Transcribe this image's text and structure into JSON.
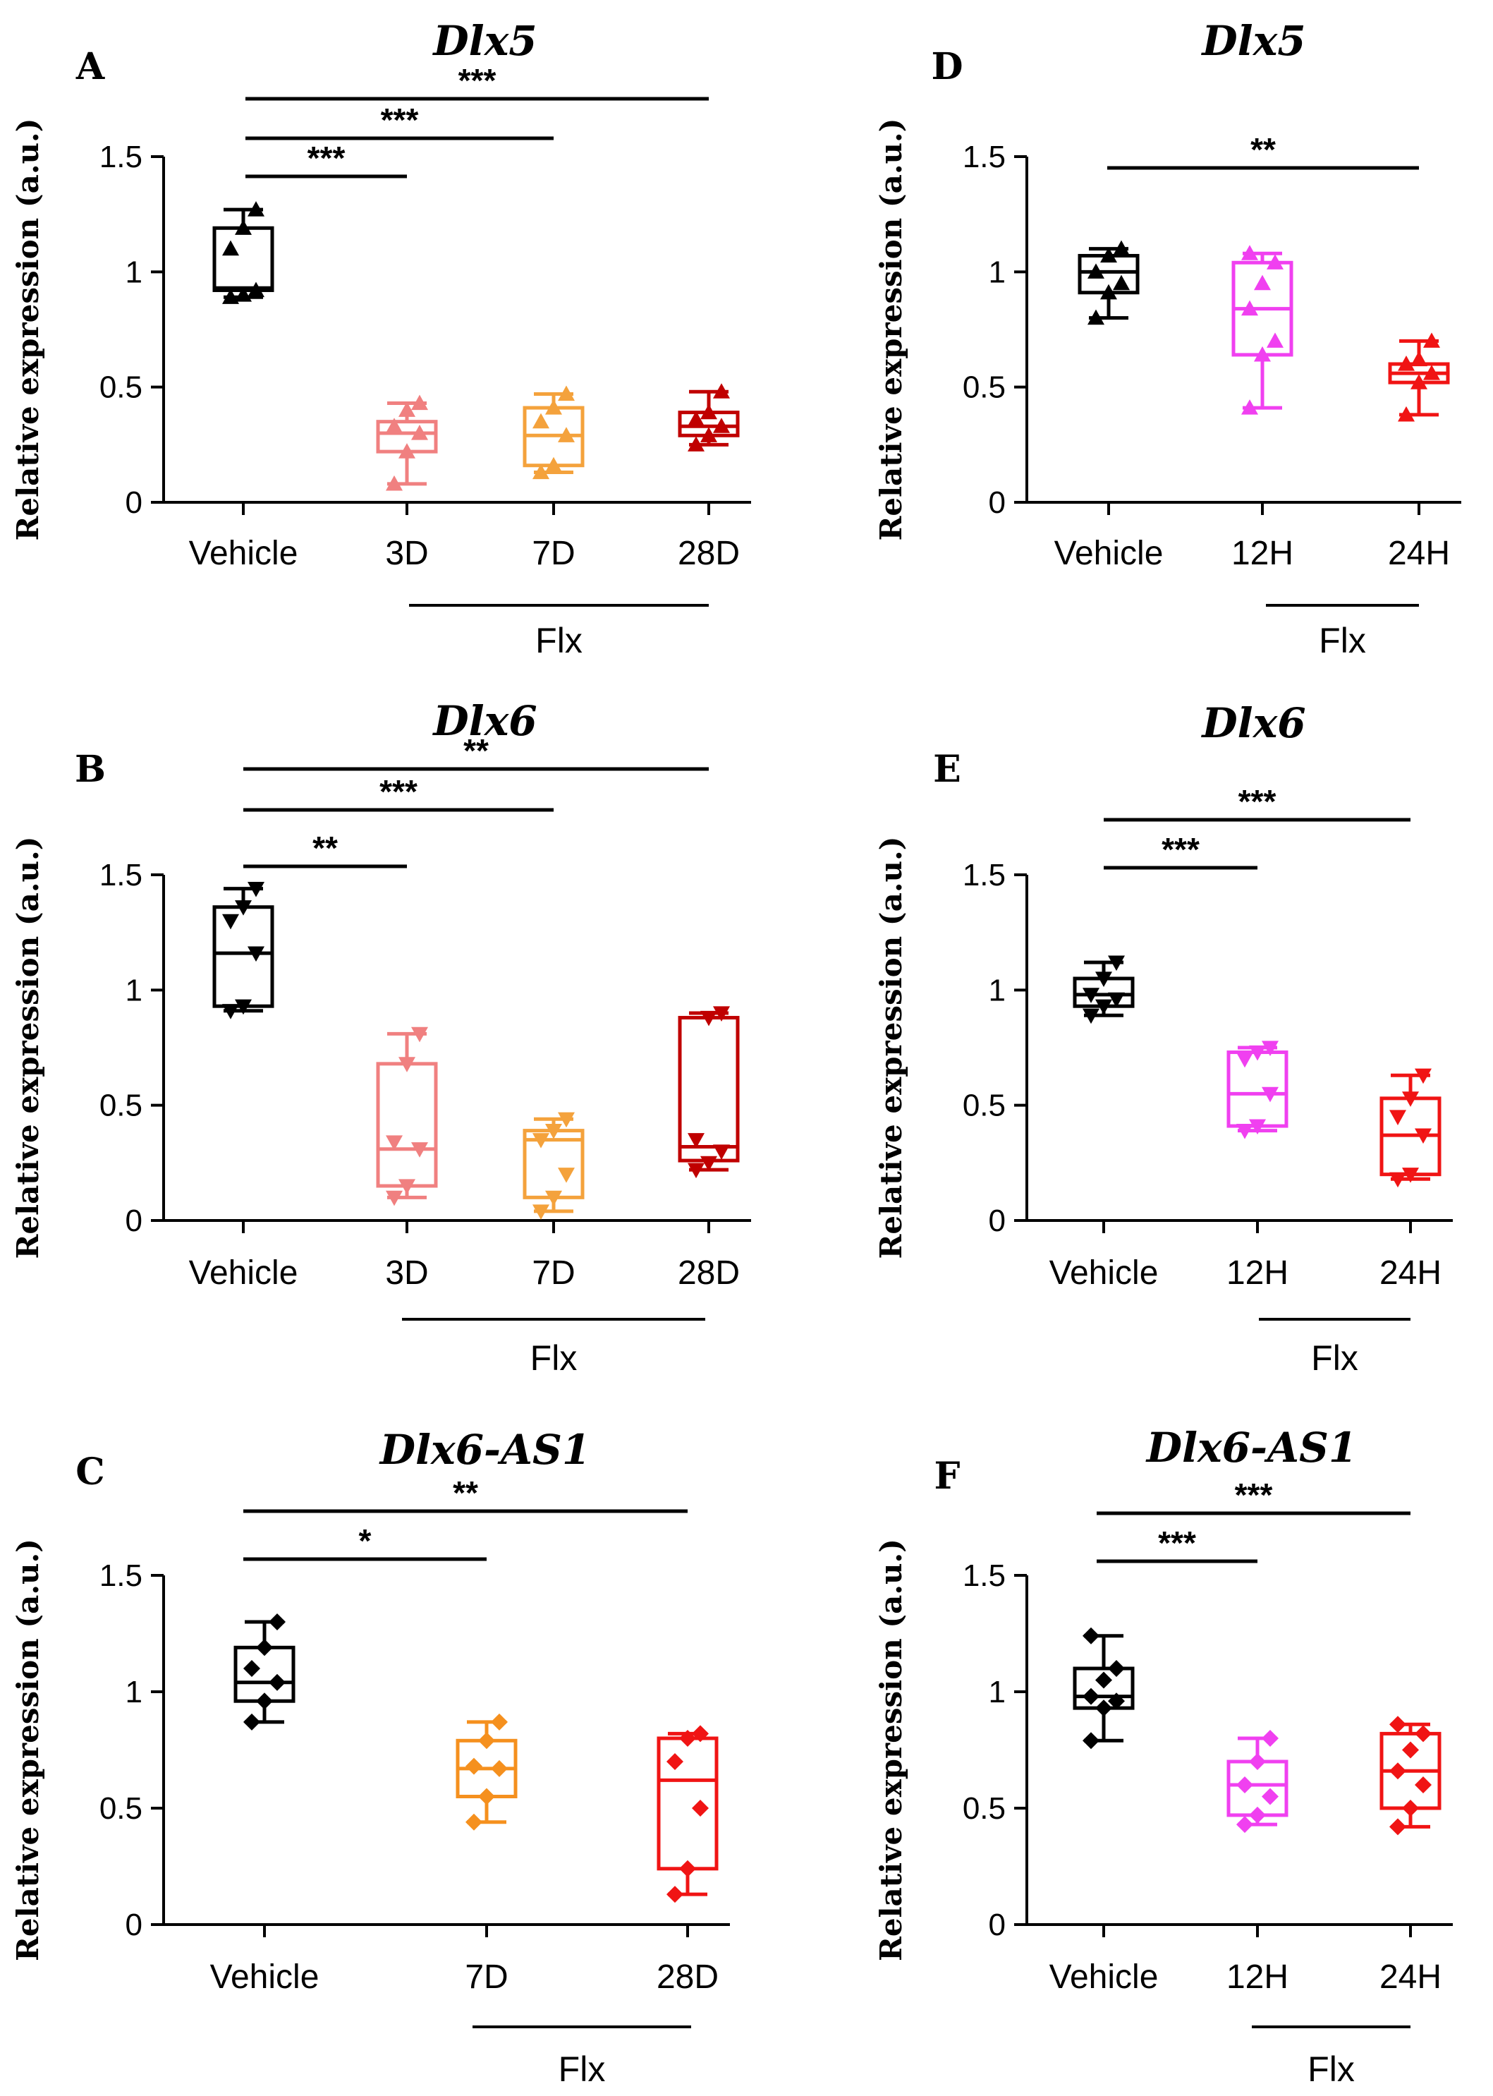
{
  "chart_data": [
    {
      "id": "A",
      "type": "box",
      "title": "Dlx5",
      "ylabel": "Relative expression (a.u.)",
      "yticks": [
        "0",
        "0.5",
        "1",
        "1.5"
      ],
      "ylim": [
        0,
        1.5
      ],
      "categories": [
        "Vehicle",
        "3D",
        "7D",
        "28D"
      ],
      "group_label": "Flx",
      "group_span": [
        1,
        3
      ],
      "marker": "up",
      "boxes": [
        {
          "color": "#000000",
          "min": 0.89,
          "q1": 0.92,
          "median": 0.93,
          "q3": 1.19,
          "max": 1.27,
          "points": [
            0.89,
            0.9,
            0.92,
            1.1,
            1.19,
            1.27
          ]
        },
        {
          "color": "#F08080",
          "min": 0.08,
          "q1": 0.22,
          "median": 0.3,
          "q3": 0.35,
          "max": 0.43,
          "points": [
            0.08,
            0.22,
            0.3,
            0.33,
            0.4,
            0.43
          ]
        },
        {
          "color": "#F4A23C",
          "min": 0.13,
          "q1": 0.16,
          "median": 0.29,
          "q3": 0.41,
          "max": 0.47,
          "points": [
            0.13,
            0.16,
            0.29,
            0.35,
            0.41,
            0.47
          ]
        },
        {
          "color": "#C00000",
          "min": 0.25,
          "q1": 0.29,
          "median": 0.33,
          "q3": 0.39,
          "max": 0.48,
          "points": [
            0.25,
            0.29,
            0.33,
            0.36,
            0.39,
            0.48
          ]
        }
      ],
      "significance": [
        {
          "from": 0,
          "to": 1,
          "label": "***"
        },
        {
          "from": 0,
          "to": 2,
          "label": "***"
        },
        {
          "from": 0,
          "to": 3,
          "label": "***"
        }
      ]
    },
    {
      "id": "B",
      "type": "box",
      "title": "Dlx6",
      "ylabel": "Relative expression (a.u.)",
      "yticks": [
        "0",
        "0.5",
        "1",
        "1.5"
      ],
      "ylim": [
        0,
        1.5
      ],
      "categories": [
        "Vehicle",
        "3D",
        "7D",
        "28D"
      ],
      "group_label": "Flx",
      "group_span": [
        1,
        3
      ],
      "marker": "down",
      "boxes": [
        {
          "color": "#000000",
          "min": 0.91,
          "q1": 0.93,
          "median": 1.16,
          "q3": 1.36,
          "max": 1.44,
          "points": [
            0.91,
            0.93,
            1.16,
            1.3,
            1.36,
            1.44
          ]
        },
        {
          "color": "#F08080",
          "min": 0.1,
          "q1": 0.15,
          "median": 0.31,
          "q3": 0.68,
          "max": 0.81,
          "points": [
            0.1,
            0.15,
            0.31,
            0.34,
            0.68,
            0.81
          ]
        },
        {
          "color": "#F4A23C",
          "min": 0.04,
          "q1": 0.1,
          "median": 0.35,
          "q3": 0.39,
          "max": 0.44,
          "points": [
            0.04,
            0.1,
            0.2,
            0.35,
            0.39,
            0.44
          ]
        },
        {
          "color": "#C00000",
          "min": 0.22,
          "q1": 0.26,
          "median": 0.32,
          "q3": 0.88,
          "max": 0.9,
          "points": [
            0.22,
            0.25,
            0.3,
            0.35,
            0.88,
            0.9
          ]
        }
      ],
      "significance": [
        {
          "from": 0,
          "to": 1,
          "label": "**"
        },
        {
          "from": 0,
          "to": 2,
          "label": "***"
        },
        {
          "from": 0,
          "to": 3,
          "label": "**"
        }
      ]
    },
    {
      "id": "C",
      "type": "box",
      "title": "Dlx6-AS1",
      "ylabel": "Relative expression (a.u.)",
      "yticks": [
        "0",
        "0.5",
        "1",
        "1.5"
      ],
      "ylim": [
        0,
        1.5
      ],
      "categories": [
        "Vehicle",
        "7D",
        "28D"
      ],
      "group_label": "Flx",
      "group_span": [
        1,
        2
      ],
      "marker": "diamond",
      "boxes": [
        {
          "color": "#000000",
          "min": 0.87,
          "q1": 0.96,
          "median": 1.04,
          "q3": 1.19,
          "max": 1.3,
          "points": [
            0.87,
            0.96,
            1.04,
            1.1,
            1.19,
            1.3
          ]
        },
        {
          "color": "#F5901E",
          "min": 0.44,
          "q1": 0.55,
          "median": 0.67,
          "q3": 0.79,
          "max": 0.87,
          "points": [
            0.44,
            0.55,
            0.67,
            0.68,
            0.79,
            0.87
          ]
        },
        {
          "color": "#F01414",
          "min": 0.13,
          "q1": 0.24,
          "median": 0.62,
          "q3": 0.8,
          "max": 0.82,
          "points": [
            0.13,
            0.24,
            0.5,
            0.7,
            0.8,
            0.82
          ]
        }
      ],
      "significance": [
        {
          "from": 0,
          "to": 1,
          "label": "*"
        },
        {
          "from": 0,
          "to": 2,
          "label": "**"
        }
      ]
    },
    {
      "id": "D",
      "type": "box",
      "title": "Dlx5",
      "ylabel": "Relative expression (a.u.)",
      "yticks": [
        "0",
        "0.5",
        "1",
        "1.5"
      ],
      "ylim": [
        0,
        1.5
      ],
      "categories": [
        "Vehicle",
        "12H",
        "24H"
      ],
      "group_label": "Flx",
      "group_span": [
        1,
        2
      ],
      "marker": "up",
      "boxes": [
        {
          "color": "#000000",
          "min": 0.8,
          "q1": 0.91,
          "median": 1.0,
          "q3": 1.07,
          "max": 1.1,
          "points": [
            0.8,
            0.91,
            0.95,
            1.0,
            1.07,
            1.1
          ]
        },
        {
          "color": "#F040F0",
          "min": 0.41,
          "q1": 0.64,
          "median": 0.84,
          "q3": 1.04,
          "max": 1.08,
          "points": [
            0.41,
            0.64,
            0.7,
            0.84,
            0.95,
            1.04,
            1.08
          ]
        },
        {
          "color": "#F01414",
          "min": 0.38,
          "q1": 0.52,
          "median": 0.56,
          "q3": 0.6,
          "max": 0.7,
          "points": [
            0.38,
            0.52,
            0.56,
            0.6,
            0.62,
            0.7
          ]
        }
      ],
      "significance": [
        {
          "from": 0,
          "to": 2,
          "label": "**"
        }
      ]
    },
    {
      "id": "E",
      "type": "box",
      "title": "Dlx6",
      "ylabel": "Relative expression (a.u.)",
      "yticks": [
        "0",
        "0.5",
        "1",
        "1.5"
      ],
      "ylim": [
        0,
        1.5
      ],
      "categories": [
        "Vehicle",
        "12H",
        "24H"
      ],
      "group_label": "Flx",
      "group_span": [
        1,
        2
      ],
      "marker": "down",
      "boxes": [
        {
          "color": "#000000",
          "min": 0.89,
          "q1": 0.93,
          "median": 0.98,
          "q3": 1.05,
          "max": 1.12,
          "points": [
            0.89,
            0.93,
            0.96,
            0.98,
            1.05,
            1.12
          ]
        },
        {
          "color": "#F040F0",
          "min": 0.39,
          "q1": 0.41,
          "median": 0.55,
          "q3": 0.73,
          "max": 0.75,
          "points": [
            0.39,
            0.41,
            0.55,
            0.7,
            0.73,
            0.75
          ]
        },
        {
          "color": "#F01414",
          "min": 0.18,
          "q1": 0.2,
          "median": 0.37,
          "q3": 0.53,
          "max": 0.63,
          "points": [
            0.18,
            0.2,
            0.37,
            0.45,
            0.53,
            0.63
          ]
        }
      ],
      "significance": [
        {
          "from": 0,
          "to": 1,
          "label": "***"
        },
        {
          "from": 0,
          "to": 2,
          "label": "***"
        }
      ]
    },
    {
      "id": "F",
      "type": "box",
      "title": "Dlx6-AS1",
      "ylabel": "Relative expression (a.u.)",
      "yticks": [
        "0",
        "0.5",
        "1",
        "1.5"
      ],
      "ylim": [
        0,
        1.5
      ],
      "categories": [
        "Vehicle",
        "12H",
        "24H"
      ],
      "group_label": "Flx",
      "group_span": [
        1,
        2
      ],
      "marker": "diamond",
      "boxes": [
        {
          "color": "#000000",
          "min": 0.79,
          "q1": 0.93,
          "median": 0.98,
          "q3": 1.1,
          "max": 1.24,
          "points": [
            0.79,
            0.93,
            0.96,
            0.98,
            1.05,
            1.1,
            1.24
          ]
        },
        {
          "color": "#F040F0",
          "min": 0.43,
          "q1": 0.47,
          "median": 0.6,
          "q3": 0.7,
          "max": 0.8,
          "points": [
            0.43,
            0.47,
            0.55,
            0.6,
            0.7,
            0.8
          ]
        },
        {
          "color": "#F01414",
          "min": 0.42,
          "q1": 0.5,
          "median": 0.66,
          "q3": 0.82,
          "max": 0.86,
          "points": [
            0.42,
            0.5,
            0.6,
            0.66,
            0.75,
            0.82,
            0.86
          ]
        }
      ],
      "significance": [
        {
          "from": 0,
          "to": 1,
          "label": "***"
        },
        {
          "from": 0,
          "to": 2,
          "label": "***"
        }
      ]
    }
  ]
}
